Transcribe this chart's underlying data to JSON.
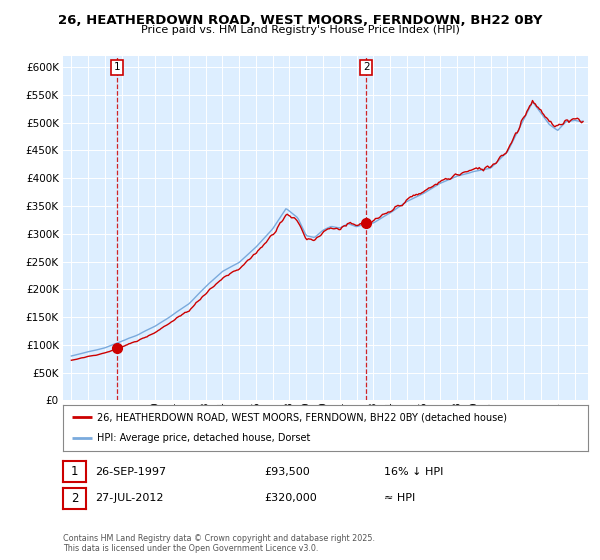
{
  "title": "26, HEATHERDOWN ROAD, WEST MOORS, FERNDOWN, BH22 0BY",
  "subtitle": "Price paid vs. HM Land Registry's House Price Index (HPI)",
  "legend_line1": "26, HEATHERDOWN ROAD, WEST MOORS, FERNDOWN, BH22 0BY (detached house)",
  "legend_line2": "HPI: Average price, detached house, Dorset",
  "annotation1_date": "26-SEP-1997",
  "annotation1_price": "£93,500",
  "annotation1_hpi": "16% ↓ HPI",
  "annotation2_date": "27-JUL-2012",
  "annotation2_price": "£320,000",
  "annotation2_hpi": "≈ HPI",
  "footnote": "Contains HM Land Registry data © Crown copyright and database right 2025.\nThis data is licensed under the Open Government Licence v3.0.",
  "red_color": "#cc0000",
  "blue_color": "#7aaadd",
  "bg_color": "#ddeeff",
  "plot_bg": "#ffffff",
  "vline_color": "#cc0000",
  "marker1_x": 1997.74,
  "marker1_y": 93500,
  "marker2_x": 2012.58,
  "marker2_y": 320000,
  "ylim": [
    0,
    620000
  ],
  "xlim_left": 1994.5,
  "xlim_right": 2025.8,
  "yticks": [
    0,
    50000,
    100000,
    150000,
    200000,
    250000,
    300000,
    350000,
    400000,
    450000,
    500000,
    550000,
    600000
  ],
  "xticks": [
    1995,
    1996,
    1997,
    1998,
    1999,
    2000,
    2001,
    2002,
    2003,
    2004,
    2005,
    2006,
    2007,
    2008,
    2009,
    2010,
    2011,
    2012,
    2013,
    2014,
    2015,
    2016,
    2017,
    2018,
    2019,
    2020,
    2021,
    2022,
    2023,
    2024,
    2025
  ]
}
